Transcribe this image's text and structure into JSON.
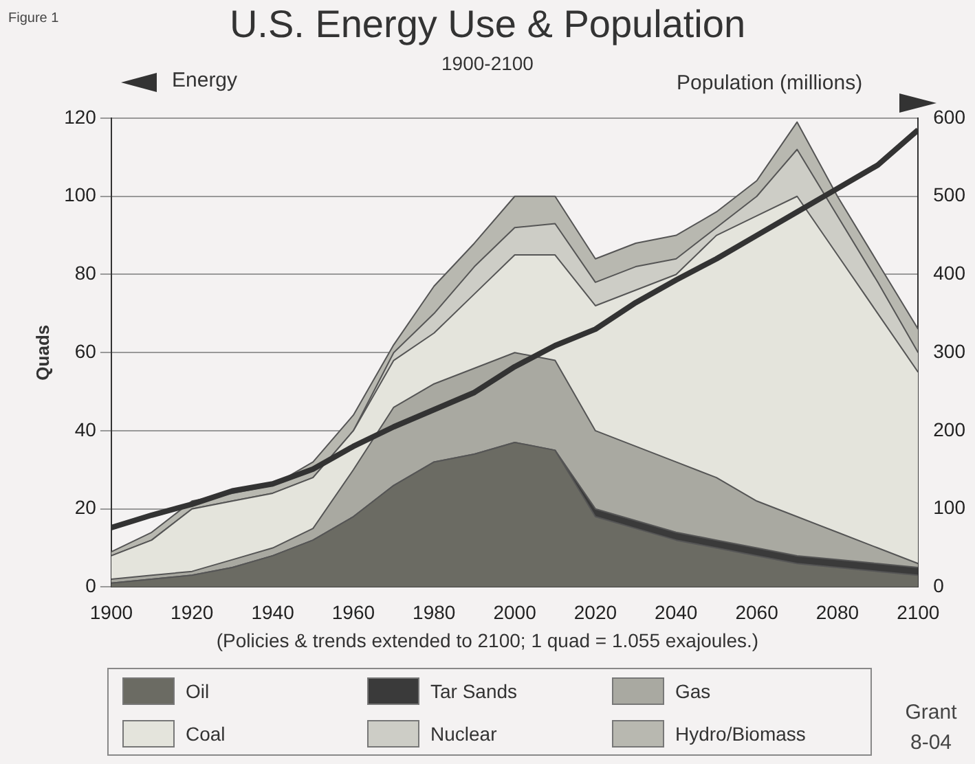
{
  "chart_data": {
    "type": "area",
    "title": "U.S. Energy Use & Population",
    "subtitle": "1900-2100",
    "ylabel": "Quads",
    "y2label": "Population (millions)",
    "annotations": [
      "Figure 1",
      "Energy",
      "(Policies & trends extended to 2100; 1 quad = 1.055 exajoules.)",
      "Grant 8-04"
    ],
    "x": [
      1900,
      1910,
      1920,
      1930,
      1940,
      1950,
      1960,
      1970,
      1980,
      1990,
      2000,
      2010,
      2020,
      2030,
      2040,
      2050,
      2060,
      2070,
      2080,
      2090,
      2100
    ],
    "stacked": true,
    "series": [
      {
        "name": "Oil",
        "color": "#6b6b63",
        "values": [
          1,
          2,
          3,
          5,
          8,
          12,
          18,
          26,
          32,
          34,
          37,
          35,
          18,
          15,
          12,
          10,
          8,
          6,
          5,
          4,
          3
        ]
      },
      {
        "name": "Tar Sands",
        "color": "#3a3a3a",
        "values": [
          0,
          0,
          0,
          0,
          0,
          0,
          0,
          0,
          0,
          0,
          0,
          0,
          2,
          2,
          2,
          2,
          2,
          2,
          2,
          2,
          2
        ]
      },
      {
        "name": "Gas",
        "color": "#a9a9a1",
        "values": [
          1,
          1,
          1,
          2,
          2,
          3,
          12,
          20,
          20,
          22,
          23,
          23,
          20,
          19,
          18,
          16,
          12,
          10,
          7,
          4,
          1
        ]
      },
      {
        "name": "Coal",
        "color": "#e4e4dc",
        "values": [
          6,
          9,
          16,
          15,
          14,
          13,
          10,
          12,
          13,
          19,
          25,
          27,
          32,
          40,
          48,
          62,
          73,
          82,
          71,
          60,
          49
        ]
      },
      {
        "name": "Nuclear",
        "color": "#cdcdc6",
        "values": [
          0,
          0,
          0,
          0,
          0,
          0,
          0,
          2,
          5,
          7,
          7,
          8,
          6,
          6,
          4,
          2,
          5,
          12,
          10,
          8,
          5
        ]
      },
      {
        "name": "Hydro/Biomass",
        "color": "#b8b8b0",
        "values": [
          1,
          2,
          2,
          2,
          2,
          4,
          4,
          2,
          7,
          6,
          8,
          7,
          6,
          6,
          6,
          4,
          4,
          7,
          5,
          5,
          6
        ]
      },
      {
        "type": "line",
        "axis": "y2",
        "color": "#333333",
        "values": [
          76,
          92,
          106,
          123,
          132,
          151,
          180,
          205,
          227,
          249,
          282,
          309,
          330,
          364,
          393,
          420,
          450,
          480,
          510,
          540,
          585
        ]
      }
    ],
    "xlim": [
      1900,
      2100
    ],
    "xticks": [
      1900,
      1920,
      1940,
      1960,
      1980,
      2000,
      2020,
      2040,
      2060,
      2080,
      2100
    ],
    "ylim": [
      0,
      120
    ],
    "yticks": [
      0,
      20,
      40,
      60,
      80,
      100,
      120
    ],
    "y2lim": [
      0,
      600
    ],
    "y2ticks": [
      0,
      100,
      200,
      300,
      400,
      500,
      600
    ],
    "grid": "y",
    "legend": "bottom",
    "marker": "none",
    "line_style": "solid"
  }
}
